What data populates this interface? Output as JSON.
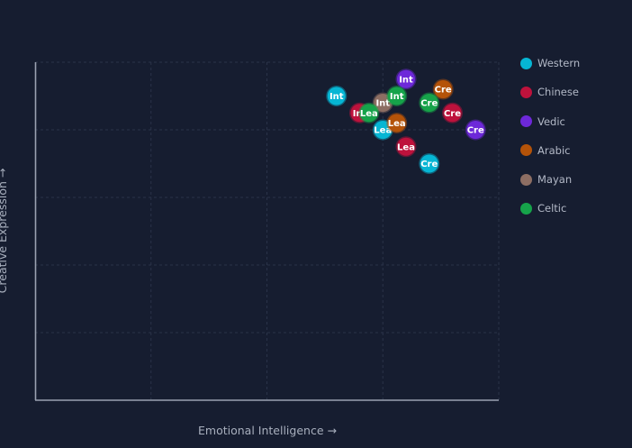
{
  "chart_data": {
    "type": "scatter",
    "title": "",
    "xlabel": "Emotional Intelligence →",
    "ylabel": "Creative Expression →",
    "xlim": [
      0,
      100
    ],
    "ylim": [
      0,
      100
    ],
    "grid": true,
    "legend_position": "right",
    "series": [
      {
        "name": "Western",
        "color": "#06b6d4",
        "points": [
          {
            "x": 65,
            "y": 90,
            "label": "Int"
          },
          {
            "x": 75,
            "y": 80,
            "label": "Lea"
          },
          {
            "x": 85,
            "y": 70,
            "label": "Cre"
          }
        ]
      },
      {
        "name": "Chinese",
        "color": "#be123c",
        "points": [
          {
            "x": 70,
            "y": 85,
            "label": "Int"
          },
          {
            "x": 80,
            "y": 75,
            "label": "Lea"
          },
          {
            "x": 90,
            "y": 85,
            "label": "Cre"
          }
        ]
      },
      {
        "name": "Vedic",
        "color": "#6d28d9",
        "points": [
          {
            "x": 80,
            "y": 95,
            "label": "Int"
          },
          {
            "x": 95,
            "y": 80,
            "label": "Cre"
          }
        ]
      },
      {
        "name": "Arabic",
        "color": "#b45309",
        "points": [
          {
            "x": 78,
            "y": 82,
            "label": "Lea"
          },
          {
            "x": 88,
            "y": 92,
            "label": "Cre"
          }
        ]
      },
      {
        "name": "Mayan",
        "color": "#8d6e63",
        "points": [
          {
            "x": 75,
            "y": 88,
            "label": "Int"
          }
        ]
      },
      {
        "name": "Celtic",
        "color": "#16a34a",
        "points": [
          {
            "x": 78,
            "y": 90,
            "label": "Int"
          },
          {
            "x": 72,
            "y": 85,
            "label": "Lea"
          },
          {
            "x": 85,
            "y": 88,
            "label": "Cre"
          }
        ]
      }
    ]
  }
}
